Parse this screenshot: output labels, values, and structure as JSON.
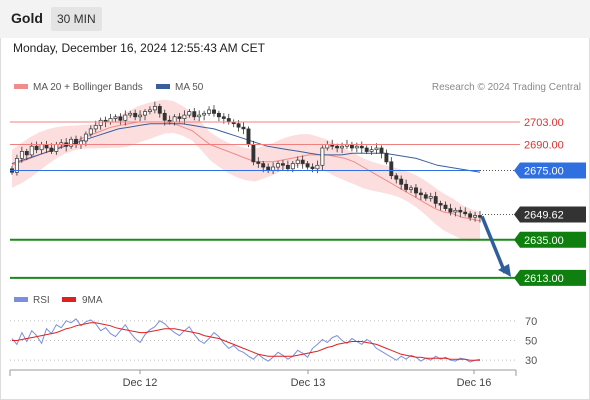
{
  "header": {
    "instrument": "Gold",
    "interval": "30 MIN",
    "datetime": "Monday, December 16, 2024 12:55:43 AM CET"
  },
  "legend": {
    "items": [
      {
        "label": "MA 20 + Bollinger Bands",
        "color": "#f28b8b"
      },
      {
        "label": "MA 50",
        "color": "#3a5f9f"
      }
    ],
    "credit": "Research © 2024 Trading Central"
  },
  "chart_data": [
    {
      "type": "candlestick",
      "title": "",
      "xlabel": "",
      "ylabel": "",
      "x_ticks": [
        "Dec 12",
        "Dec 13",
        "Dec 16"
      ],
      "ylim": [
        2606,
        2718
      ],
      "levels": [
        {
          "label": "2703.00",
          "value": 2703.0,
          "role": "resistance",
          "color": "#f08080"
        },
        {
          "label": "2690.00",
          "value": 2690.0,
          "role": "resistance",
          "color": "#f08080"
        },
        {
          "label": "2675.00",
          "value": 2675.0,
          "role": "pivot",
          "color": "#2f6fe0"
        },
        {
          "label": "2649.62",
          "value": 2649.62,
          "role": "last price",
          "color": "#333333"
        },
        {
          "label": "2635.00",
          "value": 2635.0,
          "role": "support",
          "color": "#1a8a1a"
        },
        {
          "label": "2613.00",
          "value": 2613.0,
          "role": "support",
          "color": "#1a8a1a"
        }
      ],
      "close_prices": [
        2674,
        2682,
        2686,
        2684,
        2689,
        2687,
        2690,
        2688,
        2686,
        2690,
        2691,
        2689,
        2693,
        2690,
        2692,
        2696,
        2699,
        2701,
        2704,
        2703,
        2705,
        2706,
        2704,
        2707,
        2708,
        2706,
        2707,
        2709,
        2710,
        2712,
        2708,
        2704,
        2703,
        2706,
        2705,
        2707,
        2709,
        2706,
        2707,
        2708,
        2710,
        2708,
        2706,
        2705,
        2703,
        2702,
        2700,
        2699,
        2690,
        2680,
        2679,
        2677,
        2675,
        2677,
        2679,
        2678,
        2676,
        2679,
        2681,
        2679,
        2677,
        2676,
        2678,
        2688,
        2690,
        2689,
        2688,
        2689,
        2690,
        2688,
        2689,
        2688,
        2686,
        2687,
        2688,
        2685,
        2680,
        2672,
        2670,
        2667,
        2664,
        2665,
        2662,
        2661,
        2659,
        2660,
        2656,
        2655,
        2653,
        2651,
        2652,
        2651,
        2650,
        2648,
        2649,
        2648
      ],
      "ma20": [
        2678,
        2680,
        2682,
        2684,
        2686,
        2688,
        2690,
        2692,
        2694,
        2696,
        2698,
        2700,
        2701,
        2702,
        2703,
        2703,
        2703,
        2703,
        2702,
        2700,
        2698,
        2694,
        2690,
        2688,
        2686,
        2684,
        2682,
        2680,
        2680,
        2680,
        2681,
        2682,
        2683,
        2684,
        2684,
        2684,
        2683,
        2682,
        2680,
        2677,
        2674,
        2671,
        2668,
        2665,
        2662,
        2659,
        2656,
        2653,
        2651,
        2650,
        2648,
        2647,
        2646
      ],
      "ma50": [
        2679,
        2681,
        2683,
        2685,
        2687,
        2689,
        2691,
        2693,
        2695,
        2697,
        2699,
        2700,
        2701,
        2702,
        2702,
        2702,
        2702,
        2701,
        2700,
        2699,
        2697,
        2695,
        2693,
        2691,
        2689,
        2688,
        2687,
        2686,
        2685,
        2684,
        2684,
        2684,
        2685,
        2685,
        2685,
        2685,
        2684,
        2683,
        2682,
        2680,
        2678,
        2677,
        2676,
        2675,
        2674
      ],
      "forecast": {
        "from": 2649.62,
        "to": 2613.0,
        "direction": "down"
      }
    },
    {
      "type": "line",
      "title": "",
      "legend": [
        "RSI",
        "9MA"
      ],
      "y_ticks": [
        30,
        50,
        70
      ],
      "ylim": [
        20,
        80
      ],
      "series": [
        {
          "name": "RSI",
          "color": "#7b8fe0",
          "values": [
            52,
            46,
            58,
            49,
            60,
            55,
            47,
            62,
            57,
            66,
            63,
            70,
            68,
            72,
            65,
            69,
            71,
            67,
            60,
            63,
            57,
            54,
            60,
            66,
            58,
            52,
            48,
            56,
            61,
            64,
            70,
            67,
            62,
            58,
            55,
            60,
            64,
            56,
            50,
            47,
            52,
            58,
            54,
            47,
            42,
            45,
            40,
            38,
            34,
            31,
            36,
            32,
            29,
            33,
            38,
            35,
            31,
            34,
            40,
            37,
            33,
            42,
            46,
            51,
            48,
            53,
            55,
            50,
            47,
            52,
            49,
            46,
            51,
            48,
            42,
            39,
            36,
            33,
            30,
            34,
            31,
            35,
            33,
            29,
            32,
            30,
            34,
            31,
            33,
            30,
            29,
            32,
            31,
            28,
            30,
            31
          ]
        },
        {
          "name": "9MA",
          "color": "#e02020",
          "values": [
            50,
            50,
            51,
            52,
            53,
            54,
            55,
            56,
            57,
            58,
            60,
            62,
            63,
            65,
            66,
            67,
            68,
            68,
            67,
            66,
            65,
            63,
            62,
            61,
            60,
            59,
            58,
            58,
            59,
            60,
            61,
            62,
            62,
            62,
            61,
            60,
            59,
            58,
            57,
            55,
            54,
            53,
            52,
            50,
            48,
            46,
            44,
            42,
            40,
            38,
            36,
            35,
            34,
            34,
            34,
            34,
            34,
            34,
            35,
            36,
            37,
            38,
            39,
            41,
            43,
            44,
            46,
            47,
            48,
            49,
            49,
            49,
            48,
            47,
            46,
            44,
            42,
            40,
            38,
            36,
            35,
            34,
            33,
            33,
            32,
            32,
            32,
            32,
            32,
            31,
            31,
            31,
            31,
            30,
            30,
            30
          ]
        }
      ]
    }
  ]
}
